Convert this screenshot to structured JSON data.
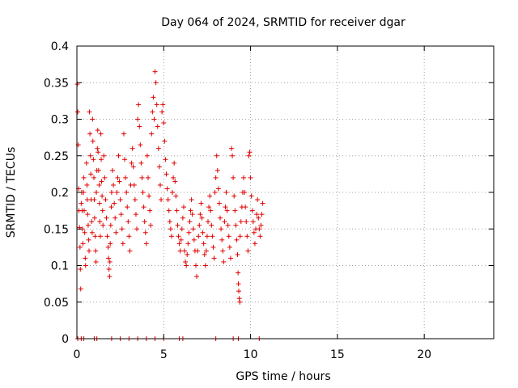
{
  "chart_data": {
    "type": "scatter",
    "title": "Day 064 of 2024, SRMTID for receiver dgar",
    "xlabel": "GPS time / hours",
    "ylabel": "SRMTID / TECUs",
    "xlim": [
      0,
      24
    ],
    "ylim": [
      0,
      0.4
    ],
    "xticks": [
      0,
      5,
      10,
      15,
      20
    ],
    "xtick_labels": [
      "0",
      "5",
      "10",
      "15",
      "20"
    ],
    "yticks": [
      0,
      0.05,
      0.1,
      0.15,
      0.2,
      0.25,
      0.3,
      0.35,
      0.4
    ],
    "ytick_labels": [
      "0",
      "0.05",
      "0.1",
      "0.15",
      "0.2",
      "0.25",
      "0.3",
      "0.35",
      "0.4"
    ],
    "grid": true,
    "marker": "plus",
    "color": "#e00000",
    "series": [
      {
        "name": "SRMTID",
        "points": [
          [
            0.02,
            0.348
          ],
          [
            0.05,
            0.31
          ],
          [
            0.08,
            0.265
          ],
          [
            0.1,
            0.205
          ],
          [
            0.12,
            0.175
          ],
          [
            0.15,
            0.152
          ],
          [
            0.18,
            0.125
          ],
          [
            0.2,
            0.095
          ],
          [
            0.22,
            0.068
          ],
          [
            0.25,
            0.185
          ],
          [
            0.28,
            0.2
          ],
          [
            0.3,
            0.175
          ],
          [
            0.32,
            0.15
          ],
          [
            0.35,
            0.13
          ],
          [
            0.38,
            0.2
          ],
          [
            0.4,
            0.22
          ],
          [
            0.42,
            0.175
          ],
          [
            0.45,
            0.145
          ],
          [
            0.48,
            0.11
          ],
          [
            0.5,
            0.1
          ],
          [
            0.55,
            0.24
          ],
          [
            0.58,
            0.21
          ],
          [
            0.6,
            0.19
          ],
          [
            0.62,
            0.17
          ],
          [
            0.65,
            0.155
          ],
          [
            0.68,
            0.135
          ],
          [
            0.7,
            0.12
          ],
          [
            0.72,
            0.31
          ],
          [
            0.75,
            0.28
          ],
          [
            0.78,
            0.25
          ],
          [
            0.8,
            0.225
          ],
          [
            0.82,
            0.19
          ],
          [
            0.85,
            0.16
          ],
          [
            0.88,
            0.145
          ],
          [
            0.9,
            0.3
          ],
          [
            0.92,
            0.27
          ],
          [
            0.95,
            0.245
          ],
          [
            0.98,
            0.22
          ],
          [
            1.0,
            0.19
          ],
          [
            1.02,
            0.165
          ],
          [
            1.05,
            0.14
          ],
          [
            1.08,
            0.12
          ],
          [
            1.1,
            0.105
          ],
          [
            1.12,
            0.2
          ],
          [
            1.15,
            0.23
          ],
          [
            1.18,
            0.26
          ],
          [
            1.2,
            0.285
          ],
          [
            1.22,
            0.255
          ],
          [
            1.25,
            0.23
          ],
          [
            1.28,
            0.21
          ],
          [
            1.3,
            0.185
          ],
          [
            1.32,
            0.16
          ],
          [
            1.35,
            0.14
          ],
          [
            1.38,
            0.28
          ],
          [
            1.4,
            0.245
          ],
          [
            1.42,
            0.215
          ],
          [
            1.45,
            0.195
          ],
          [
            1.48,
            0.175
          ],
          [
            1.5,
            0.155
          ],
          [
            1.55,
            0.25
          ],
          [
            1.6,
            0.22
          ],
          [
            1.65,
            0.19
          ],
          [
            1.7,
            0.165
          ],
          [
            1.75,
            0.14
          ],
          [
            1.8,
            0.125
          ],
          [
            1.82,
            0.11
          ],
          [
            1.85,
            0.095
          ],
          [
            1.88,
            0.085
          ],
          [
            1.9,
            0.105
          ],
          [
            1.92,
            0.13
          ],
          [
            1.95,
            0.155
          ],
          [
            1.98,
            0.18
          ],
          [
            2.0,
            0.2
          ],
          [
            2.05,
            0.23
          ],
          [
            2.1,
            0.21
          ],
          [
            2.15,
            0.185
          ],
          [
            2.2,
            0.165
          ],
          [
            2.25,
            0.145
          ],
          [
            2.3,
            0.2
          ],
          [
            2.35,
            0.22
          ],
          [
            2.4,
            0.25
          ],
          [
            2.45,
            0.215
          ],
          [
            2.5,
            0.19
          ],
          [
            2.55,
            0.17
          ],
          [
            2.6,
            0.15
          ],
          [
            2.65,
            0.13
          ],
          [
            2.7,
            0.28
          ],
          [
            2.75,
            0.245
          ],
          [
            2.8,
            0.22
          ],
          [
            2.85,
            0.2
          ],
          [
            2.9,
            0.18
          ],
          [
            2.95,
            0.16
          ],
          [
            3.0,
            0.14
          ],
          [
            3.05,
            0.12
          ],
          [
            3.1,
            0.21
          ],
          [
            3.15,
            0.24
          ],
          [
            3.2,
            0.26
          ],
          [
            3.25,
            0.235
          ],
          [
            3.3,
            0.21
          ],
          [
            3.35,
            0.19
          ],
          [
            3.4,
            0.17
          ],
          [
            3.45,
            0.15
          ],
          [
            3.5,
            0.3
          ],
          [
            3.55,
            0.32
          ],
          [
            3.6,
            0.29
          ],
          [
            3.65,
            0.265
          ],
          [
            3.7,
            0.24
          ],
          [
            3.75,
            0.22
          ],
          [
            3.8,
            0.2
          ],
          [
            3.85,
            0.18
          ],
          [
            3.9,
            0.16
          ],
          [
            3.95,
            0.145
          ],
          [
            4.0,
            0.13
          ],
          [
            4.05,
            0.25
          ],
          [
            4.1,
            0.22
          ],
          [
            4.15,
            0.195
          ],
          [
            4.2,
            0.175
          ],
          [
            4.25,
            0.155
          ],
          [
            4.3,
            0.28
          ],
          [
            4.35,
            0.31
          ],
          [
            4.4,
            0.33
          ],
          [
            4.45,
            0.3
          ],
          [
            4.5,
            0.365
          ],
          [
            4.55,
            0.35
          ],
          [
            4.6,
            0.32
          ],
          [
            4.65,
            0.29
          ],
          [
            4.7,
            0.26
          ],
          [
            4.75,
            0.235
          ],
          [
            4.8,
            0.21
          ],
          [
            4.85,
            0.19
          ],
          [
            4.9,
            0.31
          ],
          [
            4.95,
            0.32
          ],
          [
            5.0,
            0.295
          ],
          [
            5.05,
            0.27
          ],
          [
            5.1,
            0.245
          ],
          [
            5.15,
            0.225
          ],
          [
            5.2,
            0.205
          ],
          [
            5.25,
            0.19
          ],
          [
            5.3,
            0.175
          ],
          [
            5.35,
            0.16
          ],
          [
            5.4,
            0.15
          ],
          [
            5.45,
            0.14
          ],
          [
            5.5,
            0.2
          ],
          [
            5.55,
            0.22
          ],
          [
            5.6,
            0.24
          ],
          [
            5.65,
            0.215
          ],
          [
            5.7,
            0.195
          ],
          [
            5.75,
            0.175
          ],
          [
            5.8,
            0.155
          ],
          [
            5.85,
            0.14
          ],
          [
            5.9,
            0.13
          ],
          [
            5.95,
            0.12
          ],
          [
            6.0,
            0.135
          ],
          [
            6.05,
            0.15
          ],
          [
            6.1,
            0.165
          ],
          [
            6.15,
            0.18
          ],
          [
            6.2,
            0.12
          ],
          [
            6.25,
            0.105
          ],
          [
            6.3,
            0.1
          ],
          [
            6.35,
            0.115
          ],
          [
            6.4,
            0.13
          ],
          [
            6.45,
            0.145
          ],
          [
            6.5,
            0.16
          ],
          [
            6.55,
            0.175
          ],
          [
            6.6,
            0.19
          ],
          [
            6.65,
            0.17
          ],
          [
            6.7,
            0.15
          ],
          [
            6.75,
            0.135
          ],
          [
            6.8,
            0.12
          ],
          [
            6.85,
            0.1
          ],
          [
            6.9,
            0.085
          ],
          [
            6.95,
            0.12
          ],
          [
            7.0,
            0.14
          ],
          [
            7.05,
            0.155
          ],
          [
            7.1,
            0.17
          ],
          [
            7.15,
            0.185
          ],
          [
            7.2,
            0.165
          ],
          [
            7.25,
            0.145
          ],
          [
            7.3,
            0.13
          ],
          [
            7.35,
            0.115
          ],
          [
            7.4,
            0.1
          ],
          [
            7.45,
            0.12
          ],
          [
            7.5,
            0.14
          ],
          [
            7.55,
            0.16
          ],
          [
            7.6,
            0.18
          ],
          [
            7.65,
            0.195
          ],
          [
            7.7,
            0.175
          ],
          [
            7.75,
            0.155
          ],
          [
            7.8,
            0.14
          ],
          [
            7.85,
            0.125
          ],
          [
            7.9,
            0.11
          ],
          [
            7.95,
            0.2
          ],
          [
            8.0,
            0.22
          ],
          [
            8.05,
            0.25
          ],
          [
            8.1,
            0.23
          ],
          [
            8.15,
            0.205
          ],
          [
            8.2,
            0.185
          ],
          [
            8.25,
            0.165
          ],
          [
            8.3,
            0.15
          ],
          [
            8.35,
            0.135
          ],
          [
            8.4,
            0.12
          ],
          [
            8.45,
            0.105
          ],
          [
            8.5,
            0.16
          ],
          [
            8.55,
            0.18
          ],
          [
            8.6,
            0.2
          ],
          [
            8.65,
            0.175
          ],
          [
            8.7,
            0.155
          ],
          [
            8.75,
            0.14
          ],
          [
            8.8,
            0.125
          ],
          [
            8.85,
            0.11
          ],
          [
            8.9,
            0.26
          ],
          [
            8.95,
            0.25
          ],
          [
            9.0,
            0.22
          ],
          [
            9.05,
            0.195
          ],
          [
            9.1,
            0.175
          ],
          [
            9.15,
            0.155
          ],
          [
            9.2,
            0.135
          ],
          [
            9.25,
            0.115
          ],
          [
            9.28,
            0.09
          ],
          [
            9.3,
            0.075
          ],
          [
            9.32,
            0.065
          ],
          [
            9.35,
            0.055
          ],
          [
            9.38,
            0.05
          ],
          [
            9.4,
            0.14
          ],
          [
            9.45,
            0.16
          ],
          [
            9.5,
            0.18
          ],
          [
            9.55,
            0.2
          ],
          [
            9.6,
            0.22
          ],
          [
            9.65,
            0.2
          ],
          [
            9.7,
            0.18
          ],
          [
            9.75,
            0.16
          ],
          [
            9.8,
            0.14
          ],
          [
            9.85,
            0.12
          ],
          [
            9.9,
            0.25
          ],
          [
            9.95,
            0.255
          ],
          [
            10.0,
            0.22
          ],
          [
            10.05,
            0.195
          ],
          [
            10.1,
            0.175
          ],
          [
            10.15,
            0.16
          ],
          [
            10.2,
            0.145
          ],
          [
            10.25,
            0.13
          ],
          [
            10.3,
            0.15
          ],
          [
            10.35,
            0.17
          ],
          [
            10.4,
            0.19
          ],
          [
            10.45,
            0.165
          ],
          [
            10.5,
            0.15
          ],
          [
            10.55,
            0.14
          ],
          [
            10.6,
            0.155
          ],
          [
            10.65,
            0.17
          ],
          [
            10.7,
            0.185
          ],
          [
            0.05,
            0.0
          ],
          [
            0.25,
            0.0
          ],
          [
            0.4,
            0.0
          ],
          [
            1.0,
            0.0
          ],
          [
            1.15,
            0.0
          ],
          [
            2.0,
            0.0
          ],
          [
            2.5,
            0.0
          ],
          [
            3.0,
            0.0
          ],
          [
            3.5,
            0.0
          ],
          [
            4.0,
            0.0
          ],
          [
            4.5,
            0.0
          ],
          [
            5.0,
            0.0
          ],
          [
            5.9,
            0.0
          ],
          [
            6.1,
            0.0
          ],
          [
            8.0,
            0.0
          ],
          [
            9.0,
            0.0
          ],
          [
            9.3,
            0.0
          ],
          [
            10.5,
            0.0
          ]
        ]
      }
    ]
  }
}
